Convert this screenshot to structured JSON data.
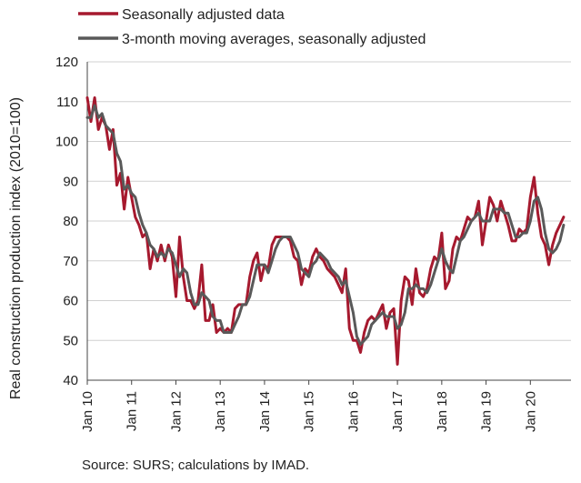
{
  "chart_data": {
    "type": "line",
    "ylabel": "Real construction production index (2010=100)",
    "ylim": [
      40,
      120
    ],
    "yticks": [
      40,
      50,
      60,
      70,
      80,
      90,
      100,
      110,
      120
    ],
    "xlim": [
      2010.0,
      2020.917
    ],
    "xticks": [
      {
        "value": 2010,
        "label": "Jan 10"
      },
      {
        "value": 2011,
        "label": "Jan 11"
      },
      {
        "value": 2012,
        "label": "Jan 12"
      },
      {
        "value": 2013,
        "label": "Jan 13"
      },
      {
        "value": 2014,
        "label": "Jan 14"
      },
      {
        "value": 2015,
        "label": "Jan 15"
      },
      {
        "value": 2016,
        "label": "Jan 16"
      },
      {
        "value": 2017,
        "label": "Jan 17"
      },
      {
        "value": 2018,
        "label": "Jan 18"
      },
      {
        "value": 2019,
        "label": "Jan 19"
      },
      {
        "value": 2020,
        "label": "Jan 20"
      }
    ],
    "grid": "horizontal",
    "legend_position": "top",
    "series": [
      {
        "name": "Seasonally adjusted data",
        "color": "#a6192e",
        "points": [
          [
            2010.0,
            111
          ],
          [
            2010.083,
            105
          ],
          [
            2010.167,
            111
          ],
          [
            2010.25,
            103
          ],
          [
            2010.333,
            106
          ],
          [
            2010.417,
            104
          ],
          [
            2010.5,
            98
          ],
          [
            2010.583,
            103
          ],
          [
            2010.667,
            89
          ],
          [
            2010.75,
            92
          ],
          [
            2010.833,
            83
          ],
          [
            2010.917,
            91
          ],
          [
            2011.0,
            86
          ],
          [
            2011.083,
            81
          ],
          [
            2011.167,
            79
          ],
          [
            2011.25,
            76
          ],
          [
            2011.333,
            77
          ],
          [
            2011.417,
            68
          ],
          [
            2011.5,
            73
          ],
          [
            2011.583,
            70
          ],
          [
            2011.667,
            74
          ],
          [
            2011.75,
            70
          ],
          [
            2011.833,
            74
          ],
          [
            2011.917,
            71
          ],
          [
            2012.0,
            61
          ],
          [
            2012.083,
            76
          ],
          [
            2012.167,
            66
          ],
          [
            2012.25,
            60
          ],
          [
            2012.333,
            60
          ],
          [
            2012.417,
            58
          ],
          [
            2012.5,
            60
          ],
          [
            2012.583,
            69
          ],
          [
            2012.667,
            55
          ],
          [
            2012.75,
            55
          ],
          [
            2012.833,
            59
          ],
          [
            2012.917,
            52
          ],
          [
            2013.0,
            53
          ],
          [
            2013.083,
            52
          ],
          [
            2013.167,
            53
          ],
          [
            2013.25,
            52
          ],
          [
            2013.333,
            58
          ],
          [
            2013.417,
            59
          ],
          [
            2013.5,
            59
          ],
          [
            2013.583,
            59
          ],
          [
            2013.667,
            66
          ],
          [
            2013.75,
            70
          ],
          [
            2013.833,
            72
          ],
          [
            2013.917,
            65
          ],
          [
            2014.0,
            69
          ],
          [
            2014.083,
            68
          ],
          [
            2014.167,
            74
          ],
          [
            2014.25,
            76
          ],
          [
            2014.333,
            76
          ],
          [
            2014.417,
            76
          ],
          [
            2014.5,
            76
          ],
          [
            2014.583,
            75
          ],
          [
            2014.667,
            71
          ],
          [
            2014.75,
            70
          ],
          [
            2014.833,
            64
          ],
          [
            2014.917,
            68
          ],
          [
            2015.0,
            67
          ],
          [
            2015.083,
            71
          ],
          [
            2015.167,
            73
          ],
          [
            2015.25,
            71
          ],
          [
            2015.333,
            70
          ],
          [
            2015.417,
            68
          ],
          [
            2015.5,
            67
          ],
          [
            2015.583,
            66
          ],
          [
            2015.667,
            64
          ],
          [
            2015.75,
            62
          ],
          [
            2015.833,
            68
          ],
          [
            2015.917,
            53
          ],
          [
            2016.0,
            50
          ],
          [
            2016.083,
            50
          ],
          [
            2016.167,
            47
          ],
          [
            2016.25,
            52
          ],
          [
            2016.333,
            55
          ],
          [
            2016.417,
            56
          ],
          [
            2016.5,
            55
          ],
          [
            2016.583,
            57
          ],
          [
            2016.667,
            59
          ],
          [
            2016.75,
            53
          ],
          [
            2016.833,
            57
          ],
          [
            2016.917,
            58
          ],
          [
            2017.0,
            44
          ],
          [
            2017.083,
            60
          ],
          [
            2017.167,
            66
          ],
          [
            2017.25,
            65
          ],
          [
            2017.333,
            59
          ],
          [
            2017.417,
            68
          ],
          [
            2017.5,
            62
          ],
          [
            2017.583,
            61
          ],
          [
            2017.667,
            63
          ],
          [
            2017.75,
            68
          ],
          [
            2017.833,
            71
          ],
          [
            2017.917,
            70
          ],
          [
            2018.0,
            77
          ],
          [
            2018.083,
            63
          ],
          [
            2018.167,
            65
          ],
          [
            2018.25,
            73
          ],
          [
            2018.333,
            76
          ],
          [
            2018.417,
            75
          ],
          [
            2018.5,
            78
          ],
          [
            2018.583,
            81
          ],
          [
            2018.667,
            80
          ],
          [
            2018.75,
            81
          ],
          [
            2018.833,
            85
          ],
          [
            2018.917,
            74
          ],
          [
            2019.0,
            80
          ],
          [
            2019.083,
            86
          ],
          [
            2019.167,
            84
          ],
          [
            2019.25,
            80
          ],
          [
            2019.333,
            85
          ],
          [
            2019.417,
            82
          ],
          [
            2019.5,
            79
          ],
          [
            2019.583,
            75
          ],
          [
            2019.667,
            75
          ],
          [
            2019.75,
            78
          ],
          [
            2019.833,
            77
          ],
          [
            2019.917,
            78
          ],
          [
            2020.0,
            86
          ],
          [
            2020.083,
            91
          ],
          [
            2020.167,
            82
          ],
          [
            2020.25,
            76
          ],
          [
            2020.333,
            74
          ],
          [
            2020.417,
            69
          ],
          [
            2020.5,
            74
          ],
          [
            2020.583,
            77
          ],
          [
            2020.667,
            79
          ],
          [
            2020.75,
            81
          ]
        ]
      },
      {
        "name": "3-month moving averages, seasonally adjusted",
        "color": "#595959",
        "points": [
          [
            2010.0,
            106
          ],
          [
            2010.083,
            106
          ],
          [
            2010.167,
            109
          ],
          [
            2010.25,
            106
          ],
          [
            2010.333,
            107
          ],
          [
            2010.417,
            104
          ],
          [
            2010.5,
            103
          ],
          [
            2010.583,
            102
          ],
          [
            2010.667,
            97
          ],
          [
            2010.75,
            95
          ],
          [
            2010.833,
            88
          ],
          [
            2010.917,
            89
          ],
          [
            2011.0,
            87
          ],
          [
            2011.083,
            86
          ],
          [
            2011.167,
            82
          ],
          [
            2011.25,
            79
          ],
          [
            2011.333,
            77
          ],
          [
            2011.417,
            74
          ],
          [
            2011.5,
            73
          ],
          [
            2011.583,
            71
          ],
          [
            2011.667,
            72
          ],
          [
            2011.75,
            71
          ],
          [
            2011.833,
            73
          ],
          [
            2011.917,
            72
          ],
          [
            2012.0,
            69
          ],
          [
            2012.083,
            66
          ],
          [
            2012.167,
            68
          ],
          [
            2012.25,
            67
          ],
          [
            2012.333,
            62
          ],
          [
            2012.417,
            59
          ],
          [
            2012.5,
            59
          ],
          [
            2012.583,
            62
          ],
          [
            2012.667,
            61
          ],
          [
            2012.75,
            60
          ],
          [
            2012.833,
            56
          ],
          [
            2012.917,
            55
          ],
          [
            2013.0,
            55
          ],
          [
            2013.083,
            52
          ],
          [
            2013.167,
            52
          ],
          [
            2013.25,
            52
          ],
          [
            2013.333,
            54
          ],
          [
            2013.417,
            56
          ],
          [
            2013.5,
            59
          ],
          [
            2013.583,
            59
          ],
          [
            2013.667,
            61
          ],
          [
            2013.75,
            65
          ],
          [
            2013.833,
            69
          ],
          [
            2013.917,
            69
          ],
          [
            2014.0,
            69
          ],
          [
            2014.083,
            67
          ],
          [
            2014.167,
            70
          ],
          [
            2014.25,
            73
          ],
          [
            2014.333,
            75
          ],
          [
            2014.417,
            76
          ],
          [
            2014.5,
            76
          ],
          [
            2014.583,
            76
          ],
          [
            2014.667,
            74
          ],
          [
            2014.75,
            72
          ],
          [
            2014.833,
            68
          ],
          [
            2014.917,
            67
          ],
          [
            2015.0,
            66
          ],
          [
            2015.083,
            69
          ],
          [
            2015.167,
            70
          ],
          [
            2015.25,
            72
          ],
          [
            2015.333,
            71
          ],
          [
            2015.417,
            70
          ],
          [
            2015.5,
            68
          ],
          [
            2015.583,
            67
          ],
          [
            2015.667,
            66
          ],
          [
            2015.75,
            64
          ],
          [
            2015.833,
            65
          ],
          [
            2015.917,
            61
          ],
          [
            2016.0,
            57
          ],
          [
            2016.083,
            51
          ],
          [
            2016.167,
            49
          ],
          [
            2016.25,
            50
          ],
          [
            2016.333,
            51
          ],
          [
            2016.417,
            54
          ],
          [
            2016.5,
            55
          ],
          [
            2016.583,
            56
          ],
          [
            2016.667,
            57
          ],
          [
            2016.75,
            56
          ],
          [
            2016.833,
            56
          ],
          [
            2016.917,
            56
          ],
          [
            2017.0,
            53
          ],
          [
            2017.083,
            54
          ],
          [
            2017.167,
            57
          ],
          [
            2017.25,
            63
          ],
          [
            2017.333,
            63
          ],
          [
            2017.417,
            64
          ],
          [
            2017.5,
            63
          ],
          [
            2017.583,
            63
          ],
          [
            2017.667,
            62
          ],
          [
            2017.75,
            64
          ],
          [
            2017.833,
            67
          ],
          [
            2017.917,
            70
          ],
          [
            2018.0,
            73
          ],
          [
            2018.083,
            70
          ],
          [
            2018.167,
            68
          ],
          [
            2018.25,
            67
          ],
          [
            2018.333,
            71
          ],
          [
            2018.417,
            75
          ],
          [
            2018.5,
            76
          ],
          [
            2018.583,
            78
          ],
          [
            2018.667,
            80
          ],
          [
            2018.75,
            81
          ],
          [
            2018.833,
            82
          ],
          [
            2018.917,
            80
          ],
          [
            2019.0,
            80
          ],
          [
            2019.083,
            80
          ],
          [
            2019.167,
            83
          ],
          [
            2019.25,
            83
          ],
          [
            2019.333,
            83
          ],
          [
            2019.417,
            82
          ],
          [
            2019.5,
            82
          ],
          [
            2019.583,
            79
          ],
          [
            2019.667,
            76
          ],
          [
            2019.75,
            76
          ],
          [
            2019.833,
            77
          ],
          [
            2019.917,
            77
          ],
          [
            2020.0,
            80
          ],
          [
            2020.083,
            85
          ],
          [
            2020.167,
            86
          ],
          [
            2020.25,
            83
          ],
          [
            2020.333,
            77
          ],
          [
            2020.417,
            73
          ],
          [
            2020.5,
            72
          ],
          [
            2020.583,
            73
          ],
          [
            2020.667,
            75
          ],
          [
            2020.75,
            79
          ]
        ]
      }
    ]
  },
  "source_note": "Source: SURS; calculations by IMAD."
}
